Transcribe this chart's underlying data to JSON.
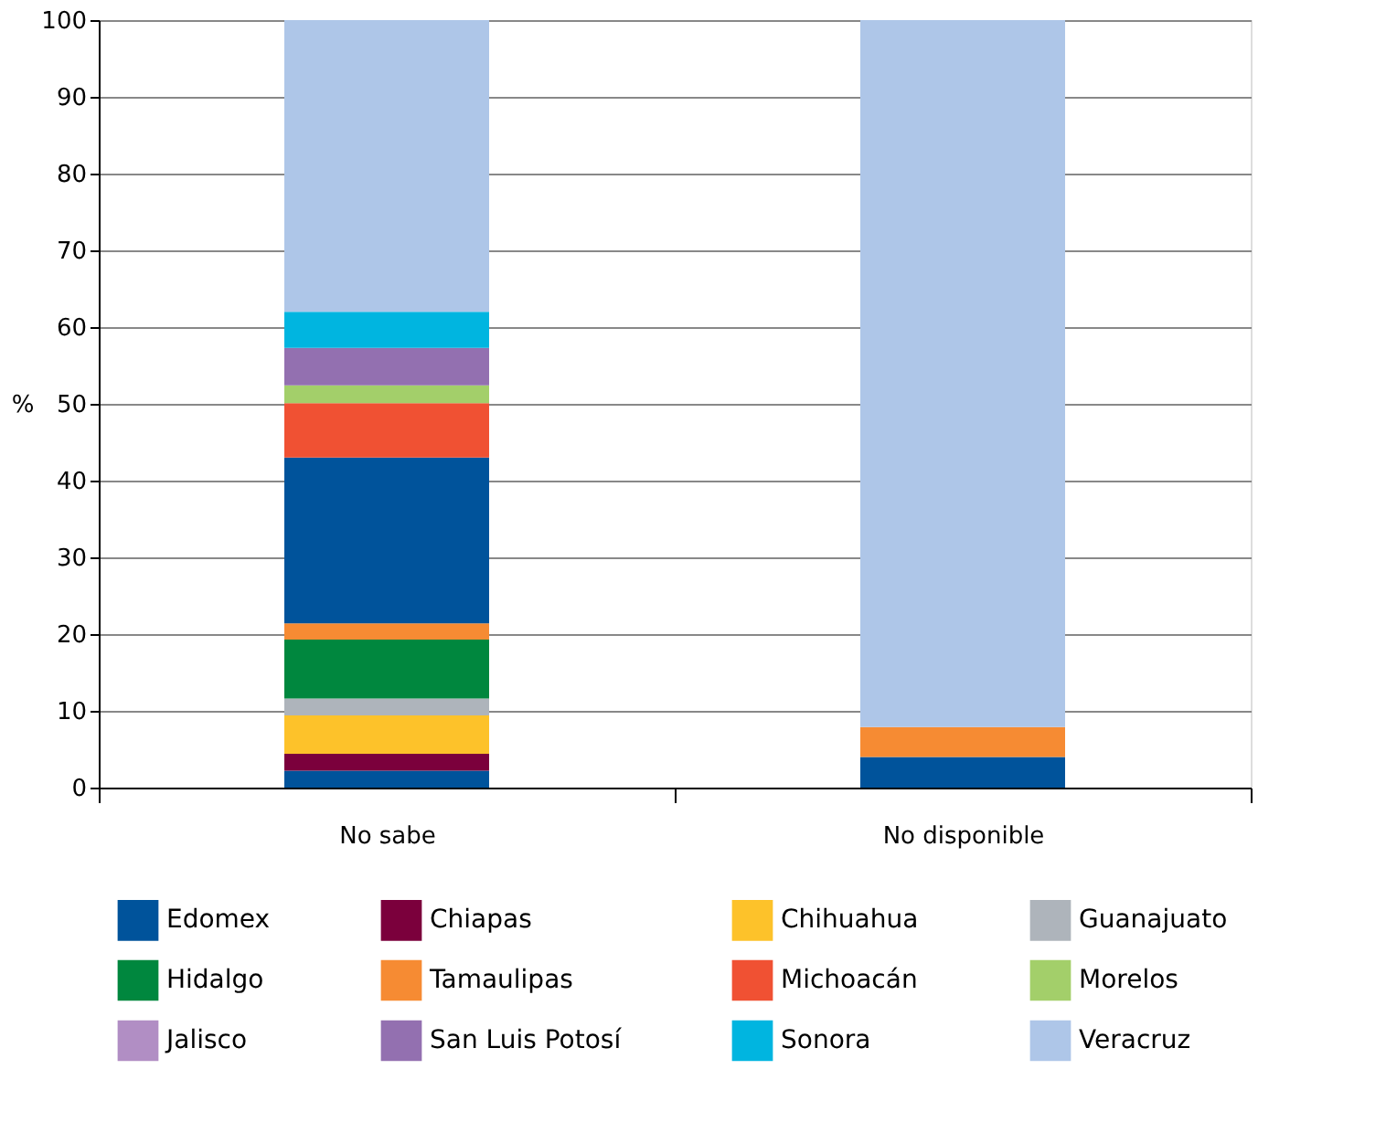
{
  "chart_data": {
    "type": "bar",
    "stacked": true,
    "ylabel": "%",
    "categories": [
      "No sabe",
      "No disponible"
    ],
    "ylim": [
      0,
      100
    ],
    "yticks": [
      0,
      10,
      20,
      30,
      40,
      50,
      60,
      70,
      80,
      90,
      100
    ],
    "grid": "y",
    "legend": "bottom",
    "series": [
      {
        "name": "Edomex",
        "color": "#00539b",
        "values": [
          2.2,
          4.0
        ]
      },
      {
        "name": "Chiapas",
        "color": "#7b003c",
        "values": [
          2.2,
          0
        ]
      },
      {
        "name": "Chihuahua",
        "color": "#fdc22a",
        "values": [
          5.0,
          0
        ]
      },
      {
        "name": "Guanajuato",
        "color": "#aeb4bb",
        "values": [
          2.2,
          0
        ]
      },
      {
        "name": "Hidalgo",
        "color": "#00873e",
        "values": [
          7.7,
          0
        ]
      },
      {
        "name": "Tamaulipas",
        "color": "#f68b33",
        "values": [
          2.1,
          3.9
        ]
      },
      {
        "color": "#00539b",
        "values": [
          21.6,
          0
        ]
      },
      {
        "name": "Michoacán",
        "color": "#f05133",
        "values": [
          7.1,
          0
        ]
      },
      {
        "name": "Morelos",
        "color": "#a3cf6a",
        "values": [
          2.3,
          0
        ]
      },
      {
        "name": "Jalisco",
        "color": "#b18ec4",
        "values": [
          0,
          0
        ]
      },
      {
        "name": "San Luis Potosí",
        "color": "#9370b0",
        "values": [
          4.9,
          0
        ]
      },
      {
        "name": "Sonora",
        "color": "#00b5e0",
        "values": [
          4.7,
          0
        ]
      },
      {
        "name": "Veracruz",
        "color": "#aec6e8",
        "values": [
          38.0,
          92.1
        ]
      }
    ]
  }
}
